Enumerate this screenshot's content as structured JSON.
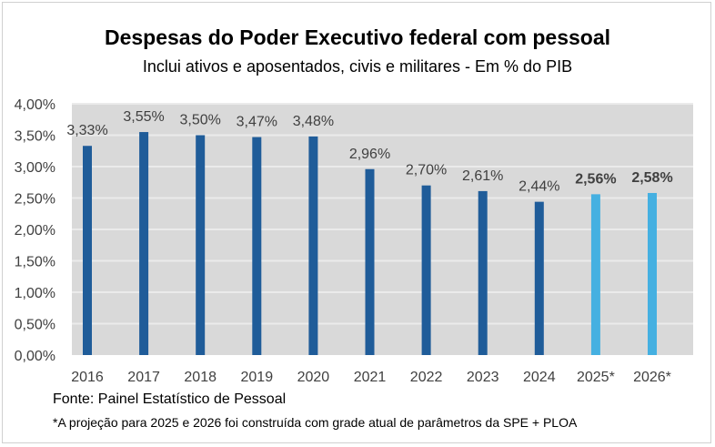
{
  "chart_data": {
    "type": "bar",
    "title": "Despesas do Poder Executivo federal com pessoal",
    "subtitle": "Inclui ativos e aposentados, civis e militares - Em % do PIB",
    "categories": [
      "2016",
      "2017",
      "2018",
      "2019",
      "2020",
      "2021",
      "2022",
      "2023",
      "2024",
      "2025*",
      "2026*"
    ],
    "values": [
      3.33,
      3.55,
      3.5,
      3.47,
      3.48,
      2.96,
      2.7,
      2.61,
      2.44,
      2.56,
      2.58
    ],
    "data_labels": [
      "3,33%",
      "3,55%",
      "3,50%",
      "3,47%",
      "3,48%",
      "2,96%",
      "2,70%",
      "2,61%",
      "2,44%",
      "2,56%",
      "2,58%"
    ],
    "projected": [
      false,
      false,
      false,
      false,
      false,
      false,
      false,
      false,
      false,
      true,
      true
    ],
    "ylim": [
      0,
      4
    ],
    "yticks": [
      "0,00%",
      "0,50%",
      "1,00%",
      "1,50%",
      "2,00%",
      "2,50%",
      "3,00%",
      "3,50%",
      "4,00%"
    ],
    "grid": true,
    "colors": {
      "actual": "#1f5c99",
      "projected": "#45b0e1",
      "plot_bg": "#d9d9d9",
      "grid": "#ebebeb"
    }
  },
  "footer": {
    "source": "Fonte: Painel Estatístico de Pessoal",
    "note": "*A projeção para 2025 e 2026 foi construída com grade atual de parâmetros da SPE + PLOA"
  }
}
